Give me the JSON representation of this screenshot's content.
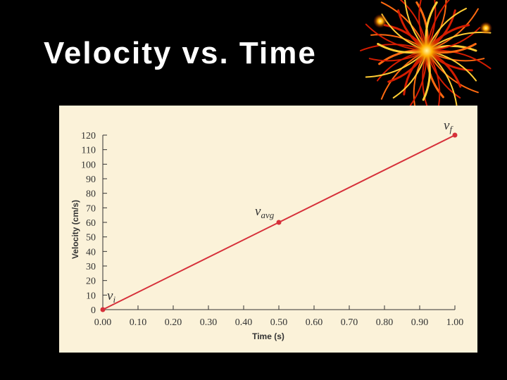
{
  "slide": {
    "title": "Velocity vs. Time"
  },
  "colors": {
    "background": "#000000",
    "panel": "#fbf2d9",
    "series": "#d6303a",
    "axis": "#333333"
  },
  "chart_data": {
    "type": "line",
    "xlabel": "Time (s)",
    "ylabel": "Velocity (cm/s)",
    "xlim": [
      0,
      1.0
    ],
    "ylim": [
      0,
      120
    ],
    "x_ticks": [
      "0.00",
      "0.10",
      "0.20",
      "0.30",
      "0.40",
      "0.50",
      "0.60",
      "0.70",
      "0.80",
      "0.90",
      "1.00"
    ],
    "y_ticks": [
      "0",
      "10",
      "20",
      "30",
      "40",
      "50",
      "60",
      "70",
      "80",
      "90",
      "100",
      "110",
      "120"
    ],
    "grid": false,
    "series": [
      {
        "x": [
          0.0,
          0.5,
          1.0
        ],
        "y": [
          0,
          60,
          120
        ],
        "markers": true
      }
    ],
    "annotations": [
      {
        "main": "v",
        "sub": "i",
        "x": 0.0,
        "y": 0
      },
      {
        "main": "v",
        "sub": "avg",
        "x": 0.5,
        "y": 60
      },
      {
        "main": "v",
        "sub": "f",
        "x": 1.0,
        "y": 120
      }
    ]
  }
}
